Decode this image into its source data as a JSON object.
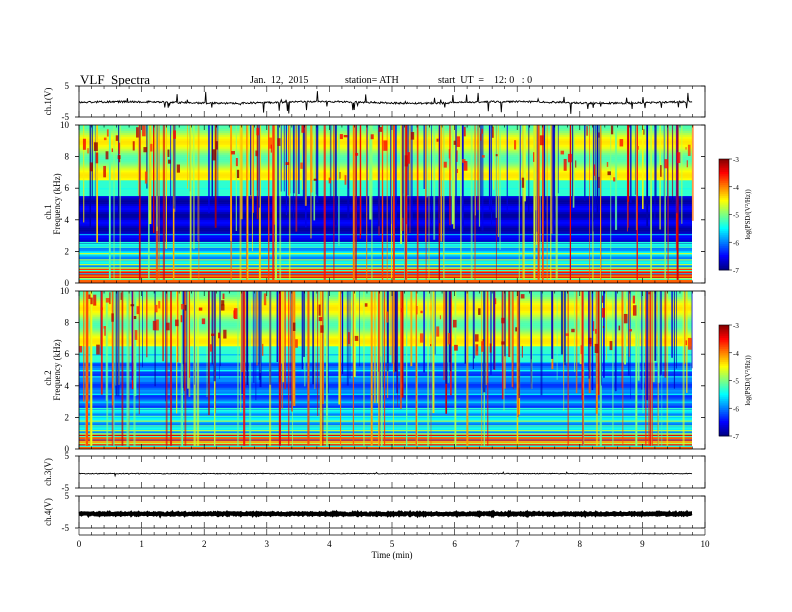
{
  "header": {
    "title": "VLF  Spectra",
    "date": "Jan.  12,  2015",
    "station": "station= ATH",
    "start": "start  UT  =    12: 0   : 0"
  },
  "chart_data": [
    {
      "type": "line",
      "name": "ch1-waveform",
      "ylabel": "ch.1(V)",
      "ylim": [
        -5,
        5
      ],
      "yticks": [
        "5",
        "-5"
      ]
    },
    {
      "type": "heatmap",
      "name": "ch1-spectrogram",
      "ylabel_top": "ch.1",
      "ylabel": "Frequency  (kHz)",
      "ylim": [
        0,
        10
      ],
      "yticks": [
        "0",
        "2",
        "4",
        "6",
        "8",
        "10"
      ],
      "colorbar": {
        "label": "log(PSD/(V²/Hz))",
        "range": [
          -7,
          -3
        ],
        "ticks": [
          "-3",
          "-4",
          "-5",
          "-6",
          "-7"
        ]
      }
    },
    {
      "type": "heatmap",
      "name": "ch2-spectrogram",
      "ylabel_top": "ch.2",
      "ylabel": "Frequency  (kHz)",
      "ylim": [
        0,
        10
      ],
      "yticks": [
        "0",
        "2",
        "4",
        "6",
        "8",
        "10"
      ],
      "colorbar": {
        "label": "log(PSD/(V²/Hz))",
        "range": [
          -7,
          -3
        ],
        "ticks": [
          "-3",
          "-4",
          "-5",
          "-6",
          "-7"
        ]
      }
    },
    {
      "type": "line",
      "name": "ch3-waveform",
      "ylabel": "ch.3(V)",
      "ylim": [
        -5,
        5
      ],
      "yticks": [
        "5",
        "-5"
      ]
    },
    {
      "type": "line",
      "name": "ch4-waveform",
      "ylabel": "ch.4(V)",
      "ylim": [
        -5,
        5
      ],
      "yticks": [
        "5",
        "-5"
      ]
    }
  ],
  "x_axis": {
    "label": "Time  (min)",
    "xlim": [
      0,
      10
    ],
    "ticks": [
      "0",
      "1",
      "2",
      "3",
      "4",
      "5",
      "6",
      "7",
      "8",
      "9",
      "10"
    ]
  }
}
